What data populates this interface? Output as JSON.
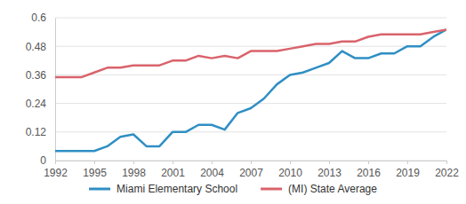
{
  "chart_data": {
    "type": "line",
    "x": [
      1992,
      1993,
      1994,
      1995,
      1996,
      1997,
      1998,
      1999,
      2000,
      2001,
      2002,
      2003,
      2004,
      2005,
      2006,
      2007,
      2008,
      2009,
      2010,
      2011,
      2012,
      2013,
      2014,
      2015,
      2016,
      2017,
      2018,
      2019,
      2020,
      2021,
      2022
    ],
    "series": [
      {
        "name": "Miami Elementary School",
        "color": "#2f8fc4",
        "values": [
          0.04,
          0.04,
          0.04,
          0.04,
          0.06,
          0.1,
          0.11,
          0.06,
          0.06,
          0.12,
          0.12,
          0.15,
          0.15,
          0.13,
          0.2,
          0.22,
          0.26,
          0.32,
          0.36,
          0.37,
          0.39,
          0.41,
          0.46,
          0.43,
          0.43,
          0.45,
          0.45,
          0.48,
          0.48,
          0.52,
          0.55
        ]
      },
      {
        "name": "(MI) State Average",
        "color": "#d9636b",
        "values": [
          0.35,
          0.35,
          0.35,
          0.37,
          0.39,
          0.39,
          0.4,
          0.4,
          0.4,
          0.42,
          0.42,
          0.44,
          0.43,
          0.44,
          0.43,
          0.46,
          0.46,
          0.46,
          0.47,
          0.48,
          0.49,
          0.49,
          0.5,
          0.5,
          0.52,
          0.53,
          0.53,
          0.53,
          0.53,
          0.54,
          0.55
        ]
      }
    ],
    "xlim": [
      1992,
      2022
    ],
    "xticks": [
      1992,
      1995,
      1998,
      2001,
      2004,
      2007,
      2010,
      2013,
      2016,
      2019,
      2022
    ],
    "ylim": [
      0,
      0.6
    ],
    "yticks": [
      0,
      0.12,
      0.24,
      0.36,
      0.48,
      0.6
    ],
    "grid": true,
    "legend": "bottom"
  }
}
